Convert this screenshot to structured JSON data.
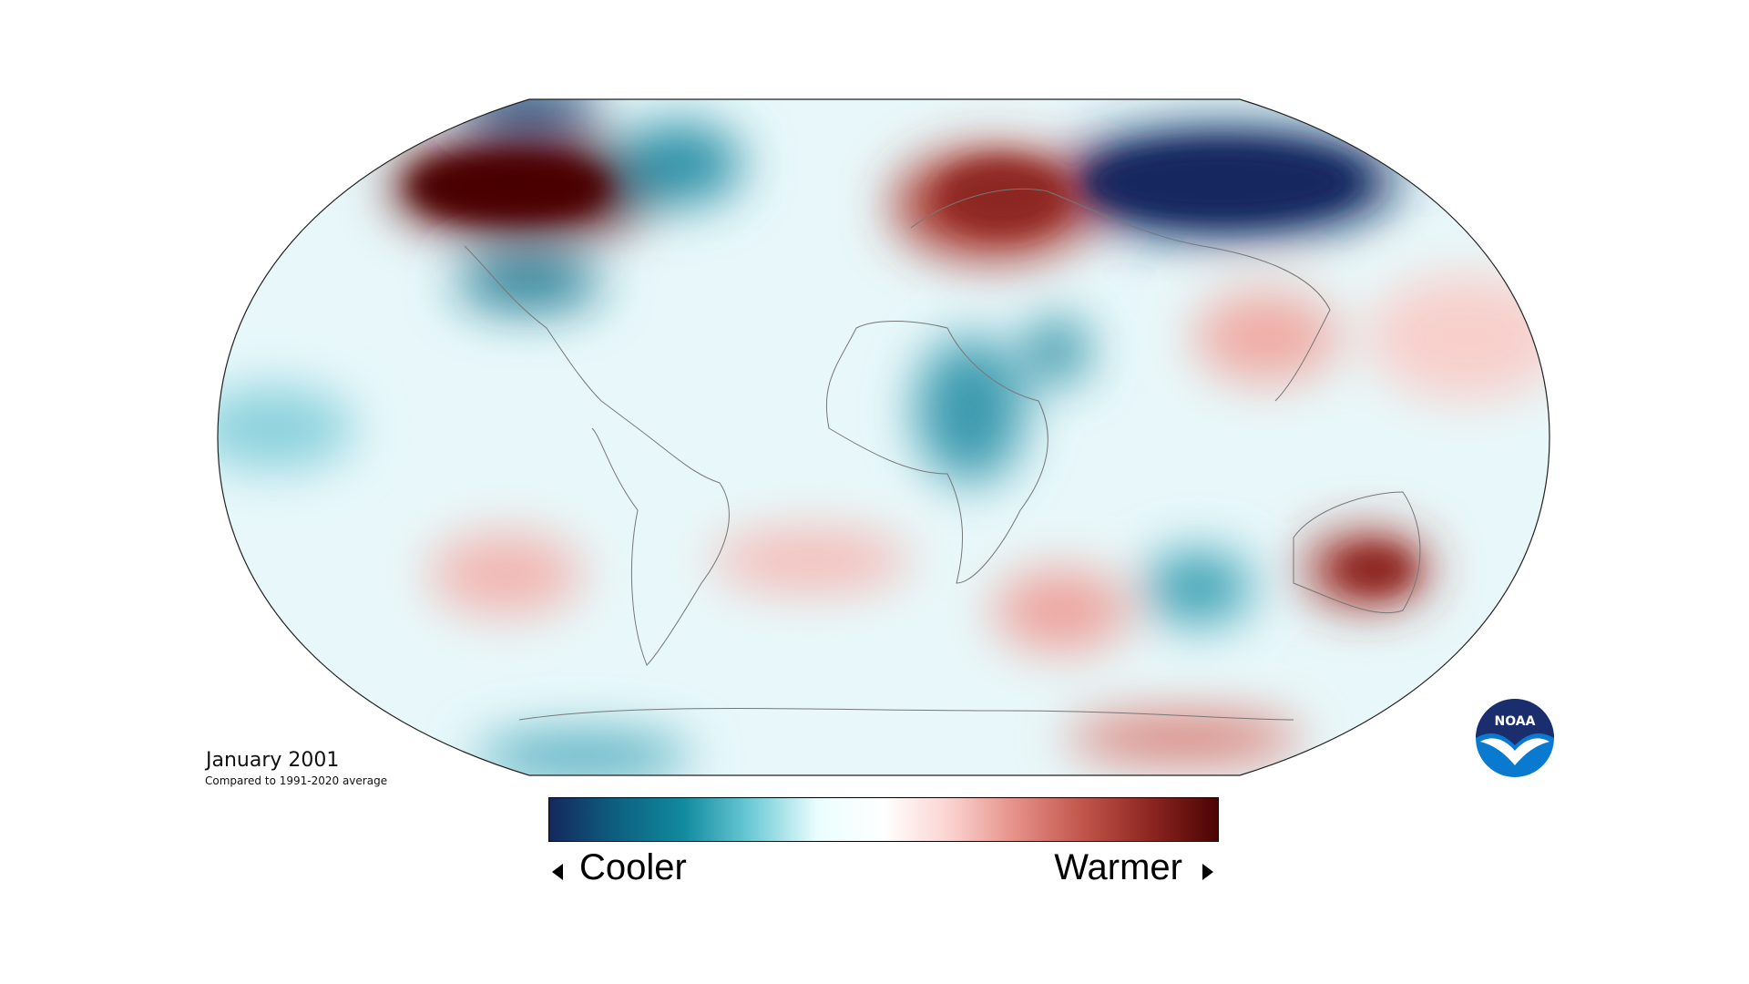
{
  "title": "January 2001",
  "subtitle": "Compared to 1991-2020 average",
  "legend": {
    "cooler_label": "Cooler",
    "warmer_label": "Warmer",
    "colors": [
      "#14285e",
      "#0e5f80",
      "#108a9e",
      "#6ccad6",
      "#eafdfd",
      "#ffffff",
      "#fbd2cf",
      "#e48e86",
      "#c0544a",
      "#8c2520",
      "#4a0404"
    ]
  },
  "logo": {
    "text": "NOAA",
    "colors": [
      "#1a2d6c",
      "#0a7ad1",
      "#ffffff"
    ]
  },
  "map": {
    "projection": "Robinson",
    "ocean_base_color": "#e8f8fa",
    "anomaly_regions": [
      {
        "name": "alaska-canada",
        "color": "#5a0606",
        "level": "much warmer"
      },
      {
        "name": "siberia",
        "color": "#102a62",
        "level": "much cooler"
      },
      {
        "name": "europe-western-russia",
        "color": "#a8382f",
        "level": "warmer"
      },
      {
        "name": "arctic-north-america",
        "color": "#124a78",
        "level": "cooler"
      },
      {
        "name": "greenland",
        "color": "#2c8fa6",
        "level": "cooler"
      },
      {
        "name": "eastern-us",
        "color": "#1d7891",
        "level": "cooler"
      },
      {
        "name": "central-africa",
        "color": "#3a9aae",
        "level": "cooler"
      },
      {
        "name": "arabia",
        "color": "#2b8ea3",
        "level": "cooler"
      },
      {
        "name": "australia",
        "color": "#a1322c",
        "level": "warmer"
      },
      {
        "name": "south-atlantic",
        "color": "#f4bcb7",
        "level": "slightly warmer"
      },
      {
        "name": "south-pacific",
        "color": "#f2b5b0",
        "level": "slightly warmer"
      },
      {
        "name": "south-indian-ocean",
        "color": "#eea39c",
        "level": "slightly warmer"
      },
      {
        "name": "indian-ocean-cool",
        "color": "#3ba0b3",
        "level": "cooler"
      },
      {
        "name": "antarctica-east",
        "color": "#d8736a",
        "level": "warmer"
      },
      {
        "name": "antarctica-west",
        "color": "#4aa9bb",
        "level": "cooler"
      },
      {
        "name": "north-pacific-east",
        "color": "#f8cfcb",
        "level": "slightly warmer"
      },
      {
        "name": "central-pacific",
        "color": "#88d0dc",
        "level": "slightly cooler"
      },
      {
        "name": "south-asia",
        "color": "#f0aaa3",
        "level": "slightly warmer"
      }
    ]
  }
}
